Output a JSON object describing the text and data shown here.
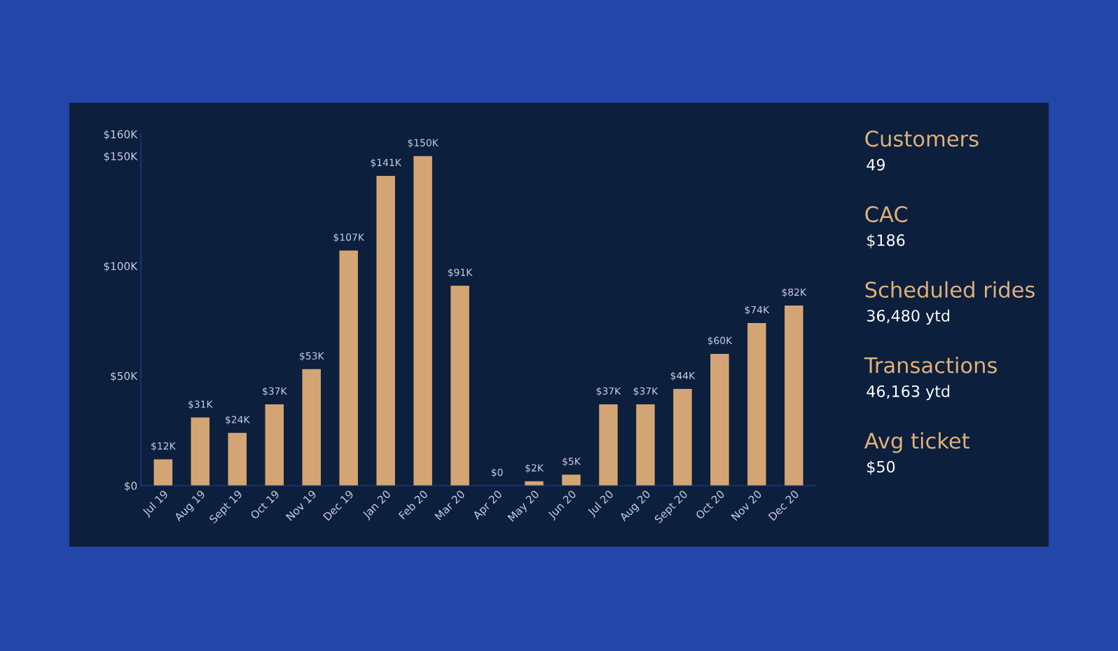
{
  "chart_data": [
    {
      "type": "bar",
      "categories": [
        "Jul 19",
        "Aug 19",
        "Sept 19",
        "Oct 19",
        "Nov 19",
        "Dec 19",
        "Jan 20",
        "Feb 20",
        "Mar 20",
        "Apr 20",
        "May 20",
        "Jun 20",
        "Jul 20",
        "Aug 20",
        "Sept 20",
        "Oct 20",
        "Nov 20",
        "Dec 20"
      ],
      "values": [
        12,
        31,
        24,
        37,
        53,
        107,
        141,
        150,
        91,
        0,
        2,
        5,
        37,
        37,
        44,
        60,
        74,
        82
      ],
      "value_labels": [
        "$12K",
        "$31K",
        "$24K",
        "$37K",
        "$53K",
        "$107K",
        "$141K",
        "$150K",
        "$91K",
        "$0",
        "$2K",
        "$5K",
        "$37K",
        "$37K",
        "$44K",
        "$60K",
        "$74K",
        "$82K"
      ],
      "color": "#d4a574",
      "ylim": [
        0,
        160
      ],
      "yticks": [
        {
          "value": 0,
          "label": "$0"
        },
        {
          "value": 50,
          "label": "$50K"
        },
        {
          "value": 100,
          "label": "$100K"
        },
        {
          "value": 150,
          "label": "$150K"
        },
        {
          "value": 160,
          "label": "$160K"
        }
      ],
      "grid": false,
      "legend": false
    },
    {
      "type": "other",
      "annotations": [
        "Customers",
        "49",
        "CAC",
        "$186",
        "Scheduled rides",
        "36,480 ytd",
        "Transactions",
        "46,163 ytd",
        "Avg ticket",
        "$50"
      ]
    }
  ]
}
